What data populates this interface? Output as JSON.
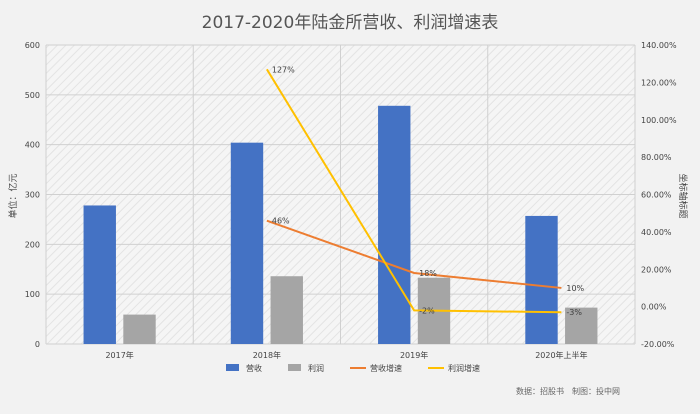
{
  "chart_data": {
    "type": "bar",
    "title": "2017-2020年陆金所营收、利润增速表",
    "categories": [
      "2017年",
      "2018年",
      "2019年",
      "2020年上半年"
    ],
    "y_left_label": "单位：亿元",
    "y_right_label": "坐标轴标题",
    "y_left_range": [
      0,
      600
    ],
    "y_left_ticks": [
      "0",
      "100",
      "200",
      "300",
      "400",
      "500",
      "600"
    ],
    "y_right_range": [
      -0.2,
      1.4
    ],
    "y_right_ticks": [
      "-20.00%",
      "0.00%",
      "20.00%",
      "40.00%",
      "60.00%",
      "80.00%",
      "100.00%",
      "120.00%",
      "140.00%"
    ],
    "grid": true,
    "legend_position": "bottom",
    "series": [
      {
        "name": "营收",
        "type": "bar",
        "axis": "left",
        "color": "#4472C4",
        "values": [
          278,
          404,
          478,
          257
        ]
      },
      {
        "name": "利润",
        "type": "bar",
        "axis": "left",
        "color": "#A5A5A5",
        "values": [
          59,
          136,
          133,
          73
        ]
      },
      {
        "name": "营收增速",
        "type": "line",
        "axis": "right",
        "color": "#ED7D31",
        "values": [
          null,
          0.46,
          0.18,
          0.1
        ],
        "labels": [
          "",
          "46%",
          "18%",
          "10%"
        ]
      },
      {
        "name": "利润增速",
        "type": "line",
        "axis": "right",
        "color": "#FFC000",
        "values": [
          null,
          1.27,
          -0.02,
          -0.03
        ],
        "labels": [
          "",
          "127%",
          "-2%",
          "-3%"
        ]
      }
    ],
    "footer": "数据：招股书　制图：投中网"
  }
}
